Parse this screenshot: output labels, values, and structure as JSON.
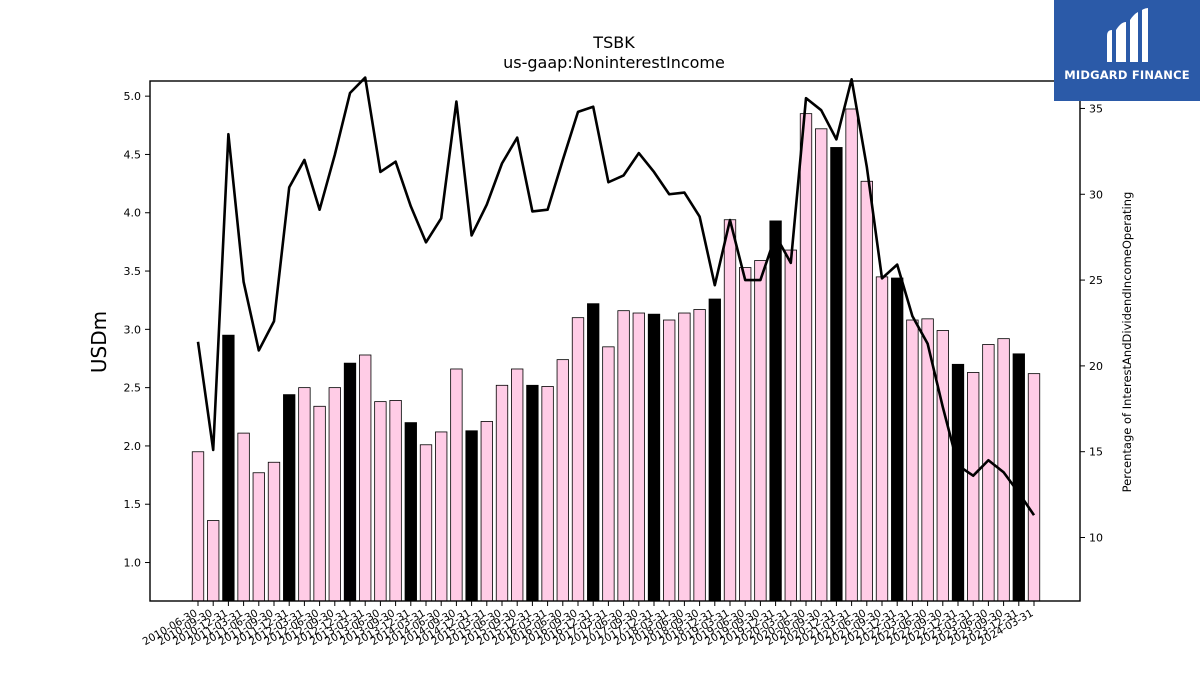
{
  "brand": {
    "name": "MIDGARD FINANCE",
    "color": "#2b5aa8"
  },
  "chart_data": {
    "type": "bar+line",
    "title": "TSBK",
    "subtitle": "us-gaap:NoninterestIncome",
    "ylabel_left": "USDm",
    "ylabel_right": "Percentage of InterestAndDividendIncomeOperating",
    "ylim_left": [
      0.67,
      5.13
    ],
    "ylim_right": [
      6.3,
      36.6
    ],
    "yticks_left": [
      "1.0",
      "1.5",
      "2.0",
      "2.5",
      "3.0",
      "3.5",
      "4.0",
      "4.5",
      "5.0"
    ],
    "yticks_right": [
      "10",
      "15",
      "20",
      "25",
      "30",
      "35"
    ],
    "colors": {
      "bar_default": "#ffcce6",
      "bar_highlight": "#000000",
      "line": "#000000"
    },
    "categories": [
      "2010-06-30",
      "2010-09-30",
      "2010-12-31",
      "2011-03-31",
      "2011-06-30",
      "2011-09-30",
      "2011-12-31",
      "2012-03-31",
      "2012-06-30",
      "2012-09-30",
      "2012-12-31",
      "2013-03-31",
      "2013-06-30",
      "2013-09-30",
      "2013-12-31",
      "2014-03-31",
      "2014-06-30",
      "2014-09-30",
      "2014-12-31",
      "2015-03-31",
      "2015-06-30",
      "2015-09-30",
      "2015-12-31",
      "2016-03-31",
      "2016-06-30",
      "2016-09-30",
      "2016-12-31",
      "2017-03-31",
      "2017-06-30",
      "2017-09-30",
      "2017-12-31",
      "2018-03-31",
      "2018-06-30",
      "2018-09-30",
      "2018-12-31",
      "2019-03-31",
      "2019-06-30",
      "2019-09-30",
      "2019-12-31",
      "2020-03-31",
      "2020-06-30",
      "2020-09-30",
      "2020-12-31",
      "2021-03-31",
      "2021-06-30",
      "2021-09-30",
      "2021-12-31",
      "2022-03-31",
      "2022-06-30",
      "2022-09-30",
      "2022-12-31",
      "2023-03-31",
      "2023-06-30",
      "2023-09-30",
      "2023-12-31",
      "2024-03-31"
    ],
    "series": [
      {
        "type": "bar",
        "values": [
          1.95,
          1.36,
          2.95,
          2.11,
          1.77,
          1.86,
          2.44,
          2.5,
          2.34,
          2.5,
          2.71,
          2.78,
          2.38,
          2.39,
          2.2,
          2.01,
          2.12,
          2.66,
          2.13,
          2.21,
          2.52,
          2.66,
          2.52,
          2.51,
          2.74,
          3.1,
          3.22,
          2.85,
          3.16,
          3.14,
          3.13,
          3.08,
          3.14,
          3.17,
          3.26,
          3.94,
          3.53,
          3.59,
          3.93,
          3.68,
          4.85,
          4.72,
          4.56,
          4.89,
          4.27,
          3.45,
          3.44,
          3.08,
          3.09,
          2.99,
          2.7,
          2.63,
          2.87,
          2.92,
          2.79,
          2.62
        ],
        "highlight": [
          false,
          false,
          true,
          false,
          false,
          false,
          true,
          false,
          false,
          false,
          true,
          false,
          false,
          false,
          true,
          false,
          false,
          false,
          true,
          false,
          false,
          false,
          true,
          false,
          false,
          false,
          true,
          false,
          false,
          false,
          true,
          false,
          false,
          false,
          true,
          false,
          false,
          false,
          true,
          false,
          false,
          false,
          true,
          false,
          false,
          false,
          true,
          false,
          false,
          false,
          true,
          false,
          false,
          false,
          true,
          false
        ]
      },
      {
        "type": "line",
        "axis": "right",
        "values": [
          21.4,
          15.1,
          33.5,
          24.9,
          20.9,
          22.6,
          30.4,
          32.0,
          29.1,
          32.3,
          35.9,
          36.8,
          31.3,
          31.9,
          29.3,
          27.2,
          28.6,
          35.4,
          27.6,
          29.4,
          31.8,
          33.3,
          29.0,
          29.1,
          32.0,
          34.8,
          35.1,
          30.7,
          31.1,
          32.4,
          31.3,
          30.0,
          30.1,
          28.7,
          24.7,
          28.5,
          25.0,
          25.0,
          27.6,
          26.0,
          35.6,
          34.9,
          33.2,
          36.7,
          31.6,
          25.1,
          25.9,
          22.9,
          21.3,
          17.6,
          14.2,
          13.6,
          14.5,
          13.8,
          12.6,
          11.3
        ]
      }
    ]
  }
}
